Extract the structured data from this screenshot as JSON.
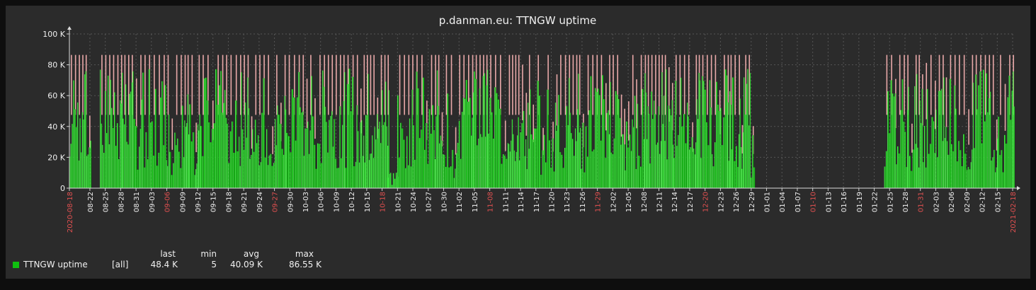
{
  "chart_data": {
    "type": "area",
    "title": "p.danman.eu: TTNGW uptime",
    "xlabel": "",
    "ylabel": "",
    "x_range": [
      "2020-08-18",
      "2021-02-18"
    ],
    "ylim": [
      0,
      100000
    ],
    "y_ticks": [
      {
        "value": 0,
        "label": "0"
      },
      {
        "value": 20000,
        "label": "20 K"
      },
      {
        "value": 40000,
        "label": "40 K"
      },
      {
        "value": 60000,
        "label": "60 K"
      },
      {
        "value": 80000,
        "label": "80 K"
      },
      {
        "value": 100000,
        "label": "100 K"
      }
    ],
    "x_ticks": [
      {
        "date": "2020-08-18",
        "label": "2020-08-18",
        "highlight": true
      },
      {
        "date": "2020-08-22",
        "label": "08-22"
      },
      {
        "date": "2020-08-25",
        "label": "08-25"
      },
      {
        "date": "2020-08-28",
        "label": "08-28"
      },
      {
        "date": "2020-08-31",
        "label": "08-31"
      },
      {
        "date": "2020-09-03",
        "label": "09-03"
      },
      {
        "date": "2020-09-06",
        "label": "09-06",
        "highlight": true
      },
      {
        "date": "2020-09-09",
        "label": "09-09"
      },
      {
        "date": "2020-09-12",
        "label": "09-12"
      },
      {
        "date": "2020-09-15",
        "label": "09-15"
      },
      {
        "date": "2020-09-18",
        "label": "09-18"
      },
      {
        "date": "2020-09-21",
        "label": "09-21"
      },
      {
        "date": "2020-09-24",
        "label": "09-24"
      },
      {
        "date": "2020-09-27",
        "label": "09-27",
        "highlight": true
      },
      {
        "date": "2020-09-30",
        "label": "09-30"
      },
      {
        "date": "2020-10-03",
        "label": "10-03"
      },
      {
        "date": "2020-10-06",
        "label": "10-06"
      },
      {
        "date": "2020-10-09",
        "label": "10-09"
      },
      {
        "date": "2020-10-12",
        "label": "10-12"
      },
      {
        "date": "2020-10-15",
        "label": "10-15"
      },
      {
        "date": "2020-10-18",
        "label": "10-18",
        "highlight": true
      },
      {
        "date": "2020-10-21",
        "label": "10-21"
      },
      {
        "date": "2020-10-24",
        "label": "10-24"
      },
      {
        "date": "2020-10-27",
        "label": "10-27"
      },
      {
        "date": "2020-10-30",
        "label": "10-30"
      },
      {
        "date": "2020-11-02",
        "label": "11-02"
      },
      {
        "date": "2020-11-05",
        "label": "11-05"
      },
      {
        "date": "2020-11-08",
        "label": "11-08",
        "highlight": true
      },
      {
        "date": "2020-11-11",
        "label": "11-11"
      },
      {
        "date": "2020-11-14",
        "label": "11-14"
      },
      {
        "date": "2020-11-17",
        "label": "11-17"
      },
      {
        "date": "2020-11-20",
        "label": "11-20"
      },
      {
        "date": "2020-11-23",
        "label": "11-23"
      },
      {
        "date": "2020-11-26",
        "label": "11-26"
      },
      {
        "date": "2020-11-29",
        "label": "11-29",
        "highlight": true
      },
      {
        "date": "2020-12-02",
        "label": "12-02"
      },
      {
        "date": "2020-12-05",
        "label": "12-05"
      },
      {
        "date": "2020-12-08",
        "label": "12-08"
      },
      {
        "date": "2020-12-11",
        "label": "12-11"
      },
      {
        "date": "2020-12-14",
        "label": "12-14"
      },
      {
        "date": "2020-12-17",
        "label": "12-17"
      },
      {
        "date": "2020-12-20",
        "label": "12-20",
        "highlight": true
      },
      {
        "date": "2020-12-23",
        "label": "12-23"
      },
      {
        "date": "2020-12-26",
        "label": "12-26"
      },
      {
        "date": "2020-12-29",
        "label": "12-29"
      },
      {
        "date": "2021-01-01",
        "label": "01-01"
      },
      {
        "date": "2021-01-04",
        "label": "01-04"
      },
      {
        "date": "2021-01-07",
        "label": "01-07"
      },
      {
        "date": "2021-01-10",
        "label": "01-10",
        "highlight": true
      },
      {
        "date": "2021-01-13",
        "label": "01-13"
      },
      {
        "date": "2021-01-16",
        "label": "01-16"
      },
      {
        "date": "2021-01-19",
        "label": "01-19"
      },
      {
        "date": "2021-01-22",
        "label": "01-22"
      },
      {
        "date": "2021-01-25",
        "label": "01-25"
      },
      {
        "date": "2021-01-28",
        "label": "01-28"
      },
      {
        "date": "2021-01-31",
        "label": "01-31",
        "highlight": true
      },
      {
        "date": "2021-02-03",
        "label": "02-03"
      },
      {
        "date": "2021-02-06",
        "label": "02-06"
      },
      {
        "date": "2021-02-09",
        "label": "02-09"
      },
      {
        "date": "2021-02-12",
        "label": "02-12"
      },
      {
        "date": "2021-02-15",
        "label": "02-15"
      },
      {
        "date": "2021-02-18",
        "label": "2021-02-18",
        "highlight": true
      }
    ],
    "grid": true,
    "series": [
      {
        "name": "TTNGW uptime",
        "qualifier": "[all]",
        "color": "#00c000",
        "max_color": "#e8a8a8",
        "description": "sawtooth; daily max ~86.4 K (24h reset)",
        "segments": [
          {
            "start": "2020-08-18",
            "end": "2020-08-22"
          },
          {
            "start": "2020-08-24",
            "end": "2020-10-19"
          },
          {
            "start": "2020-10-21",
            "end": "2020-12-29"
          },
          {
            "start": "2021-01-24",
            "end": "2021-02-18"
          }
        ],
        "notes": "low values (<20 K) around 2020-10-19 to 2020-10-21; gap 2020-12-29 to 2021-01-24"
      }
    ]
  },
  "legend": {
    "headers": {
      "last": "last",
      "min": "min",
      "avg": "avg",
      "max": "max"
    },
    "item": {
      "name": "TTNGW uptime",
      "qualifier": "[all]",
      "last": "48.4 K",
      "min": "5",
      "avg": "40.09 K",
      "max": "86.55 K",
      "color": "#0fbf0f"
    }
  },
  "colors": {
    "background": "#2b2b2b",
    "outer": "#0e0e0e",
    "text": "#f0f0f0",
    "highlight_tick": "#e05050",
    "grid": "#555555"
  }
}
